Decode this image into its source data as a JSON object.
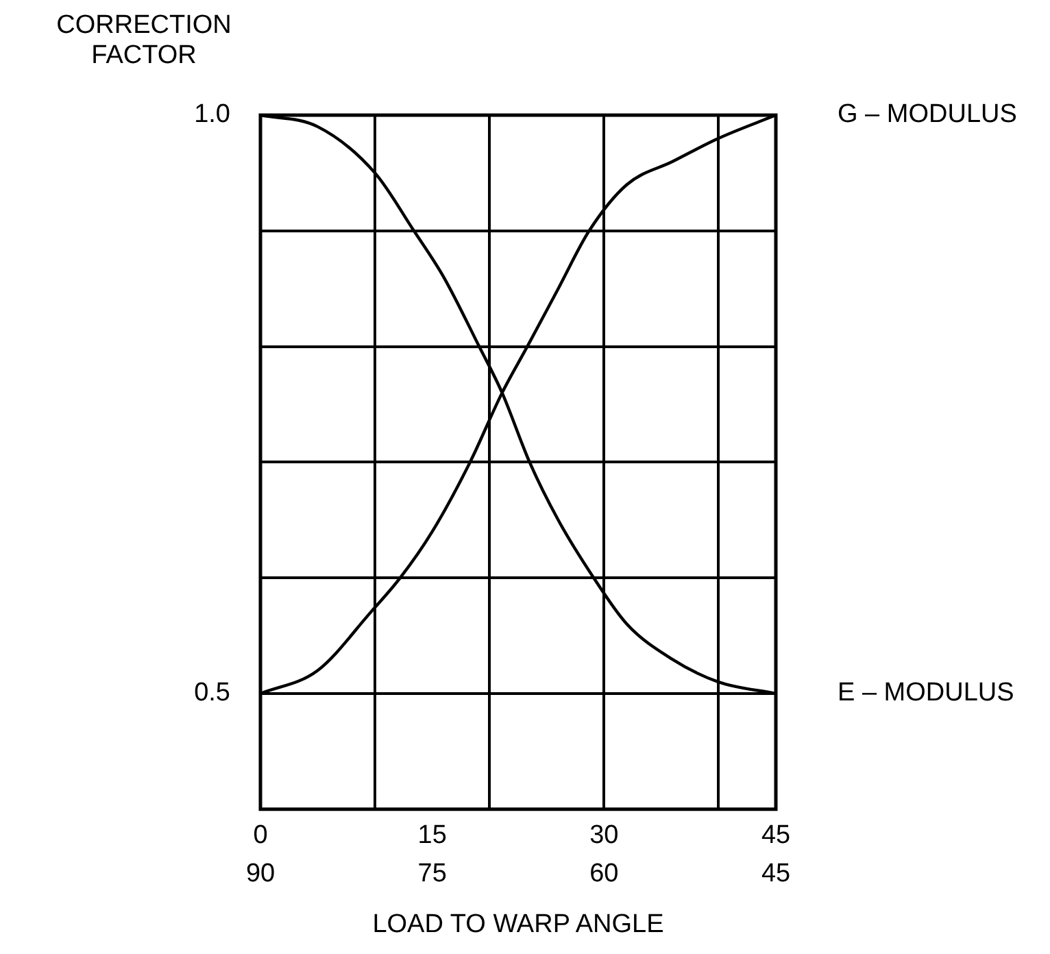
{
  "chart_data": {
    "type": "line",
    "ylabel": "CORRECTION FACTOR",
    "xlabel": "LOAD TO WARP ANGLE",
    "xlim": [
      0,
      45
    ],
    "xticks": [
      0,
      {
        "value": 10,
        "label": null
      },
      15,
      {
        "value": 20,
        "label": null
      },
      30,
      {
        "value": 40,
        "label": null
      },
      45
    ],
    "x2lim": [
      90,
      45
    ],
    "x2ticks": [
      90,
      75,
      60,
      45
    ],
    "ylim": [
      0.4,
      1.0
    ],
    "yticks": [
      {
        "value": 0.4,
        "label": null
      },
      0.5,
      {
        "value": 0.6,
        "label": null
      },
      {
        "value": 0.7,
        "label": null
      },
      {
        "value": 0.8,
        "label": null
      },
      {
        "value": 0.9,
        "label": null
      },
      {
        "value": 1.0,
        "label": "1.0"
      }
    ],
    "grid": true,
    "legend": false,
    "marker": "none",
    "line_style": "solid",
    "series": [
      {
        "name": "G – MODULUS",
        "color": "#000000",
        "x": [
          0,
          5,
          9.6,
          12.2,
          15,
          18.3,
          21.1,
          23.3,
          26,
          28.7,
          32,
          36,
          40,
          45
        ],
        "values": [
          0.5,
          0.52,
          0.57,
          0.6,
          0.64,
          0.7,
          0.76,
          0.8,
          0.85,
          0.9,
          0.94,
          0.96,
          0.98,
          1.0
        ]
      },
      {
        "name": "E – MODULUS",
        "color": "#000000",
        "x": [
          0,
          5,
          10,
          13.4,
          16,
          19.1,
          21.1,
          23.5,
          26,
          29.1,
          32,
          35.9,
          40,
          45
        ],
        "values": [
          1.0,
          0.99,
          0.95,
          0.9,
          0.86,
          0.8,
          0.76,
          0.7,
          0.65,
          0.6,
          0.56,
          0.53,
          0.51,
          0.5
        ]
      }
    ]
  }
}
